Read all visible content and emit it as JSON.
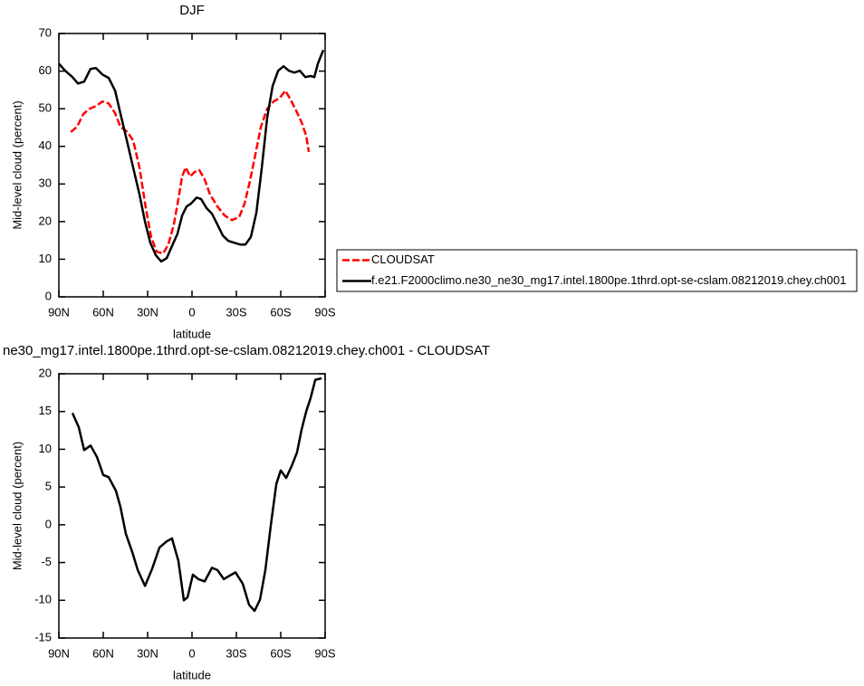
{
  "chart_data": [
    {
      "type": "line",
      "title": "DJF",
      "xlabel": "latitude",
      "ylabel": "Mid-level cloud (percent)",
      "xlim": [
        90,
        -90
      ],
      "xticks": [
        {
          "value": 90,
          "label": "90N"
        },
        {
          "value": 60,
          "label": "60N"
        },
        {
          "value": 30,
          "label": "30N"
        },
        0,
        {
          "value": -30,
          "label": "30S"
        },
        {
          "value": -60,
          "label": "60S"
        },
        {
          "value": -90,
          "label": "90S"
        }
      ],
      "ylim": [
        0,
        70
      ],
      "yticks": [
        0,
        10,
        20,
        30,
        40,
        50,
        60,
        70
      ],
      "legend": "right",
      "series": [
        {
          "name": "CLOUDSAT",
          "color": "#ff0000",
          "dash": true,
          "x": [
            82.0,
            77.7,
            73.5,
            69.2,
            64.9,
            60.6,
            56.3,
            52.0,
            48.4,
            44.1,
            39.8,
            35.5,
            31.2,
            27.6,
            23.9,
            19.6,
            16.0,
            12.3,
            9.2,
            6.7,
            4.3,
            1.2,
            -1.8,
            -4.9,
            -8.6,
            -12.2,
            -17.2,
            -22.1,
            -27.0,
            -31.9,
            -35.5,
            -39.2,
            -42.9,
            -46.6,
            -50.8,
            -55.1,
            -59.4,
            -63.1,
            -66.7,
            -70.4,
            -74.1,
            -77.2,
            -79.0
          ],
          "values": [
            43.8,
            45.2,
            48.6,
            50.0,
            50.7,
            51.9,
            51.4,
            48.8,
            45.2,
            44.0,
            41.6,
            34.4,
            23.6,
            15.9,
            12.0,
            11.5,
            13.9,
            19.2,
            26.0,
            32.0,
            34.4,
            32.0,
            33.2,
            33.7,
            31.2,
            27.2,
            24.0,
            21.6,
            20.4,
            21.2,
            24.8,
            30.8,
            38.0,
            45.2,
            50.0,
            51.9,
            52.9,
            54.8,
            52.4,
            49.5,
            46.4,
            42.8,
            38.5
          ]
        },
        {
          "name": "f.e21.F2000climo.ne30_ne30_mg17.intel.1800pe.1thrd.opt-se-cslam.08212019.chey.ch001",
          "color": "#000000",
          "dash": false,
          "x": [
            90,
            85.7,
            80.8,
            77.1,
            72.9,
            68.6,
            64.9,
            60.6,
            56.3,
            52.0,
            48.4,
            44.1,
            39.8,
            35.5,
            31.8,
            28.2,
            24.5,
            20.8,
            17.1,
            13.5,
            9.8,
            6.7,
            3.7,
            0.6,
            -3.1,
            -6.1,
            -9.8,
            -13.5,
            -17.2,
            -20.8,
            -24.5,
            -28.2,
            -32.5,
            -36.1,
            -39.8,
            -43.5,
            -47.2,
            -50.8,
            -54.5,
            -58.2,
            -61.9,
            -65.5,
            -69.2,
            -72.9,
            -76.6,
            -80.2,
            -82.7,
            -85.1,
            -88.8
          ],
          "values": [
            62.0,
            60.1,
            58.4,
            56.7,
            57.2,
            60.6,
            60.8,
            59.1,
            58.2,
            54.8,
            48.8,
            41.6,
            34.4,
            27.2,
            20.0,
            14.4,
            11.1,
            9.4,
            10.3,
            13.5,
            16.8,
            21.6,
            24.0,
            24.8,
            26.4,
            26.0,
            23.6,
            22.1,
            19.2,
            16.3,
            14.9,
            14.4,
            13.9,
            13.9,
            15.9,
            22.4,
            34.4,
            47.6,
            56.0,
            60.1,
            61.3,
            60.1,
            59.6,
            60.1,
            58.4,
            58.7,
            58.4,
            62.0,
            65.6
          ]
        }
      ]
    },
    {
      "type": "line",
      "title": "ne30_mg17.intel.1800pe.1thrd.opt-se-cslam.08212019.chey.ch001 - CLOUDSAT",
      "xlabel": "latitude",
      "ylabel": "Mid-level cloud (percent)",
      "xlim": [
        90,
        -90
      ],
      "xticks": [
        {
          "value": 90,
          "label": "90N"
        },
        {
          "value": 60,
          "label": "60N"
        },
        {
          "value": 30,
          "label": "30N"
        },
        0,
        {
          "value": -30,
          "label": "30S"
        },
        {
          "value": -60,
          "label": "60S"
        },
        {
          "value": -90,
          "label": "90S"
        }
      ],
      "ylim": [
        -15,
        20
      ],
      "yticks": [
        -15,
        -10,
        -5,
        0,
        5,
        10,
        15,
        20
      ],
      "series": [
        {
          "color": "#000000",
          "dash": false,
          "x": [
            80.8,
            76.5,
            72.9,
            68.6,
            64.3,
            60.0,
            56.3,
            51.4,
            48.4,
            44.7,
            40.4,
            36.7,
            31.8,
            26.9,
            22.0,
            17.1,
            13.5,
            9.2,
            5.5,
            3.0,
            -0.6,
            -4.3,
            -8.6,
            -13.5,
            -17.2,
            -21.5,
            -25.7,
            -29.4,
            -34.3,
            -38.6,
            -42.3,
            -46.0,
            -49.6,
            -53.3,
            -57.0,
            -60.0,
            -63.7,
            -67.4,
            -71.0,
            -74.1,
            -77.2,
            -80.2,
            -83.3,
            -87.6
          ],
          "values": [
            14.8,
            12.9,
            9.9,
            10.5,
            9.0,
            6.6,
            6.3,
            4.5,
            2.4,
            -1.2,
            -3.6,
            -6.0,
            -8.1,
            -5.8,
            -3.0,
            -2.2,
            -1.8,
            -4.8,
            -10.0,
            -9.6,
            -6.6,
            -7.2,
            -7.5,
            -5.7,
            -6.0,
            -7.2,
            -6.7,
            -6.3,
            -7.8,
            -10.6,
            -11.4,
            -9.9,
            -6.0,
            0.0,
            5.4,
            7.2,
            6.2,
            7.8,
            9.6,
            12.6,
            15.0,
            16.8,
            19.2,
            19.4
          ]
        }
      ]
    }
  ]
}
